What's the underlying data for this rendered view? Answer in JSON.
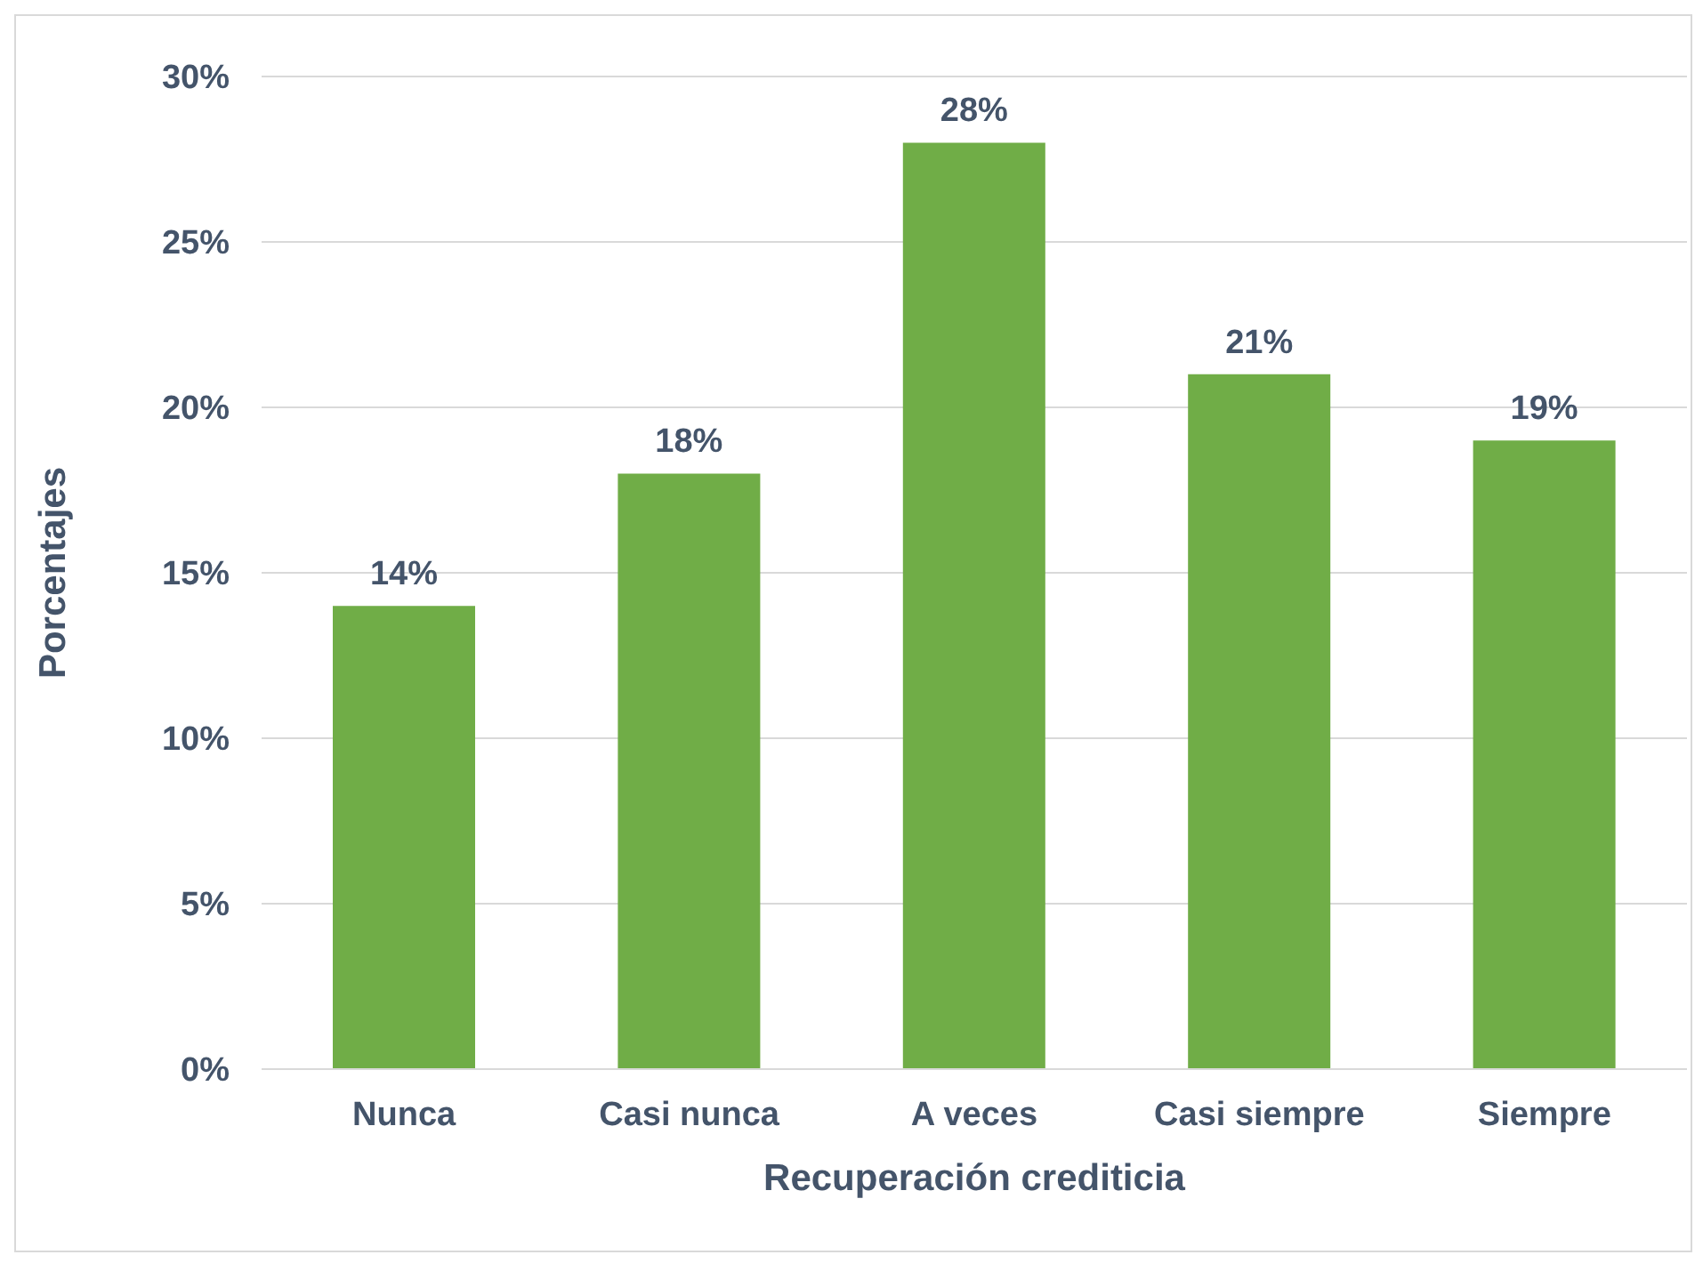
{
  "chart_data": {
    "type": "bar",
    "xlabel": "Recuperación crediticia",
    "ylabel": "Porcentajes",
    "categories": [
      "Nunca",
      "Casi nunca",
      "A veces",
      "Casi siempre",
      "Siempre"
    ],
    "values": [
      14,
      18,
      28,
      21,
      19
    ],
    "value_labels": [
      "14%",
      "18%",
      "28%",
      "21%",
      "19%"
    ],
    "color": "#70ad47",
    "ylim": [
      0,
      30
    ],
    "yticks": [
      {
        "value": 0,
        "label": "0%"
      },
      {
        "value": 5,
        "label": "5%"
      },
      {
        "value": 10,
        "label": "10%"
      },
      {
        "value": 15,
        "label": "15%"
      },
      {
        "value": 20,
        "label": "20%"
      },
      {
        "value": 25,
        "label": "25%"
      },
      {
        "value": 30,
        "label": "30%"
      }
    ],
    "grid": "y"
  }
}
